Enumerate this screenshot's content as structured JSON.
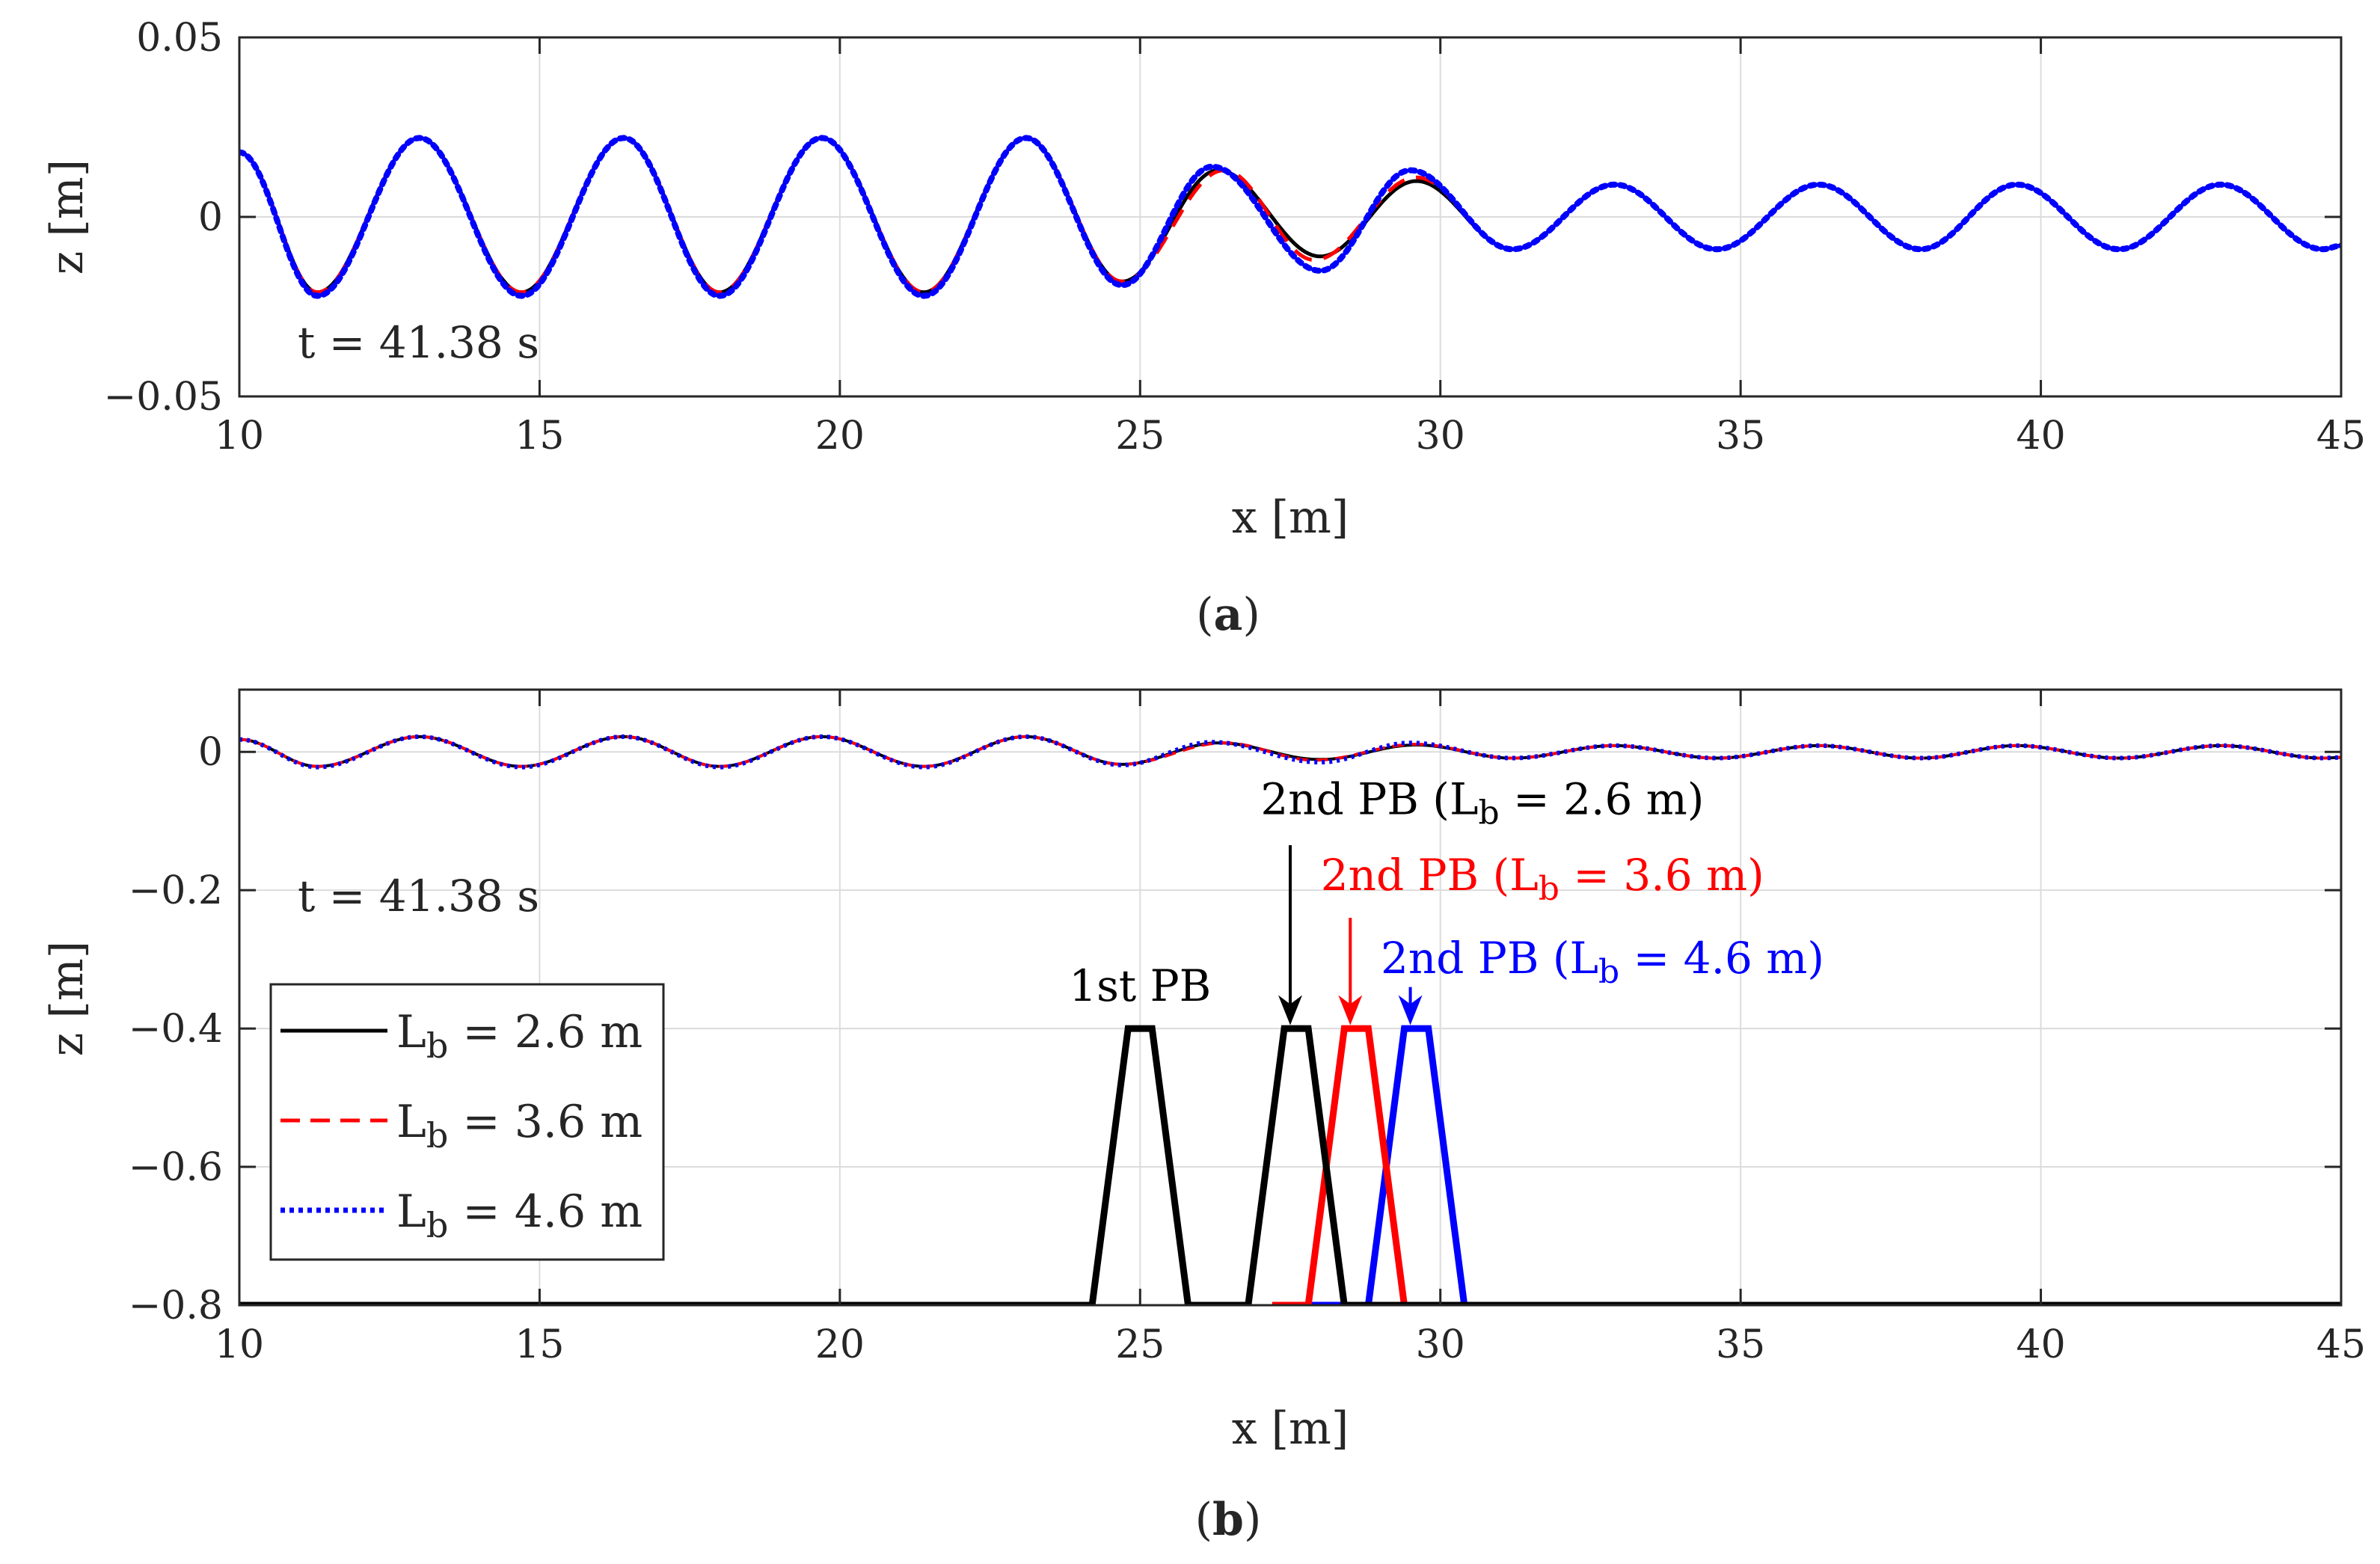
{
  "colors": {
    "lb_2_6": "#000000",
    "lb_3_6": "#ff0000",
    "lb_4_6": "#0000ff",
    "grid": "#dcdcdc",
    "axis": "#262626"
  },
  "chart_data": [
    {
      "type": "line",
      "panel_label": "a",
      "xlabel": "x [m]",
      "ylabel": "z [m]",
      "xlim": [
        10,
        45
      ],
      "ylim": [
        -0.05,
        0.05
      ],
      "xticks": [
        10,
        15,
        20,
        25,
        30,
        35,
        40,
        45
      ],
      "yticks": [
        -0.05,
        0,
        0.05
      ],
      "ytick_labels": [
        "−0.05",
        "0",
        "0.05"
      ],
      "grid": true,
      "annotation": "t = 41.38 s",
      "series": [
        {
          "key": "lb_2_6",
          "style": "solid",
          "x": [
            10,
            11.3,
            13.0,
            14.7,
            16.4,
            18.0,
            19.7,
            21.4,
            23.1,
            24.7,
            26.3,
            28.0,
            29.6,
            31.2,
            32.9,
            34.6,
            36.3,
            38.0,
            39.6,
            41.3,
            43.0,
            44.7,
            45
          ],
          "y": [
            0.018,
            -0.021,
            0.022,
            -0.021,
            0.022,
            -0.021,
            0.022,
            -0.021,
            0.022,
            -0.018,
            0.013,
            -0.011,
            0.01,
            -0.009,
            0.009,
            -0.009,
            0.009,
            -0.009,
            0.009,
            -0.009,
            0.009,
            -0.009,
            -0.008
          ]
        },
        {
          "key": "lb_3_6",
          "style": "dashed",
          "x": [
            10,
            11.3,
            13.0,
            14.7,
            16.4,
            18.0,
            19.7,
            21.4,
            23.1,
            24.7,
            26.4,
            27.9,
            29.6,
            31.2,
            32.9,
            34.6,
            36.3,
            38.0,
            39.6,
            41.3,
            43.0,
            44.7,
            45
          ],
          "y": [
            0.018,
            -0.021,
            0.022,
            -0.021,
            0.022,
            -0.021,
            0.022,
            -0.021,
            0.022,
            -0.018,
            0.013,
            -0.012,
            0.011,
            -0.009,
            0.009,
            -0.009,
            0.009,
            -0.009,
            0.009,
            -0.009,
            0.009,
            -0.009,
            -0.008
          ]
        },
        {
          "key": "lb_4_6",
          "style": "dotted",
          "x": [
            10,
            11.3,
            13.0,
            14.7,
            16.4,
            18.0,
            19.7,
            21.4,
            23.1,
            24.7,
            26.2,
            28.0,
            29.5,
            31.2,
            32.9,
            34.6,
            36.3,
            38.0,
            39.6,
            41.3,
            43.0,
            44.7,
            45
          ],
          "y": [
            0.018,
            -0.022,
            0.022,
            -0.022,
            0.022,
            -0.022,
            0.022,
            -0.022,
            0.022,
            -0.019,
            0.014,
            -0.015,
            0.013,
            -0.009,
            0.009,
            -0.009,
            0.009,
            -0.009,
            0.009,
            -0.009,
            0.009,
            -0.009,
            -0.008
          ]
        }
      ]
    },
    {
      "type": "line",
      "panel_label": "b",
      "xlabel": "x [m]",
      "ylabel": "z [m]",
      "xlim": [
        10,
        45
      ],
      "ylim": [
        -0.8,
        0.09
      ],
      "xticks": [
        10,
        15,
        20,
        25,
        30,
        35,
        40,
        45
      ],
      "yticks": [
        -0.8,
        -0.6,
        -0.4,
        -0.2,
        0
      ],
      "ytick_labels": [
        "−0.8",
        "−0.6",
        "−0.4",
        "−0.2",
        "0"
      ],
      "grid": true,
      "annotation": "t = 41.38 s",
      "legend_position": "lower-left",
      "legend": [
        {
          "key": "lb_2_6",
          "style": "solid",
          "label_main": "L",
          "label_sub": "b",
          "label_rest": " = 2.6 m"
        },
        {
          "key": "lb_3_6",
          "style": "dashed",
          "label_main": "L",
          "label_sub": "b",
          "label_rest": " = 3.6 m"
        },
        {
          "key": "lb_4_6",
          "style": "dotted",
          "label_main": "L",
          "label_sub": "b",
          "label_rest": " = 4.6 m"
        }
      ],
      "breakwaters": [
        {
          "key": "lb_2_6",
          "x": [
            10,
            24.2,
            24.8,
            25.2,
            25.8,
            26.8,
            27.4,
            27.8,
            28.4,
            45
          ],
          "y": [
            -0.8,
            -0.8,
            -0.4,
            -0.4,
            -0.8,
            -0.8,
            -0.4,
            -0.4,
            -0.8,
            -0.8
          ]
        },
        {
          "key": "lb_3_6",
          "x": [
            27.2,
            27.8,
            28.4,
            28.8,
            29.4,
            30.4
          ],
          "y": [
            -0.8,
            -0.8,
            -0.4,
            -0.4,
            -0.8,
            -0.8
          ]
        },
        {
          "key": "lb_4_6",
          "x": [
            27.2,
            28.8,
            29.4,
            29.8,
            30.4,
            31.0
          ],
          "y": [
            -0.8,
            -0.8,
            -0.4,
            -0.4,
            -0.8,
            -0.8
          ]
        }
      ],
      "annotations": [
        {
          "key": "lb_2_6",
          "text": "1st PB",
          "x": 25.0,
          "y": -0.36
        },
        {
          "key": "lb_2_6",
          "text_main": "2nd PB (L",
          "text_sub": "b",
          "text_rest": " = 2.6 m)",
          "x": 30.7,
          "y": -0.09,
          "arrow_x": 27.5,
          "arrow_from": -0.135,
          "arrow_to": -0.395
        },
        {
          "key": "lb_3_6",
          "text_main": "2nd PB (L",
          "text_sub": "b",
          "text_rest": " = 3.6 m)",
          "x": 31.7,
          "y": -0.2,
          "arrow_x": 28.5,
          "arrow_from": -0.24,
          "arrow_to": -0.395
        },
        {
          "key": "lb_4_6",
          "text_main": "2nd PB (L",
          "text_sub": "b",
          "text_rest": " = 4.6 m)",
          "x": 32.7,
          "y": -0.32,
          "arrow_x": 29.5,
          "arrow_from": -0.34,
          "arrow_to": -0.395
        }
      ]
    }
  ]
}
